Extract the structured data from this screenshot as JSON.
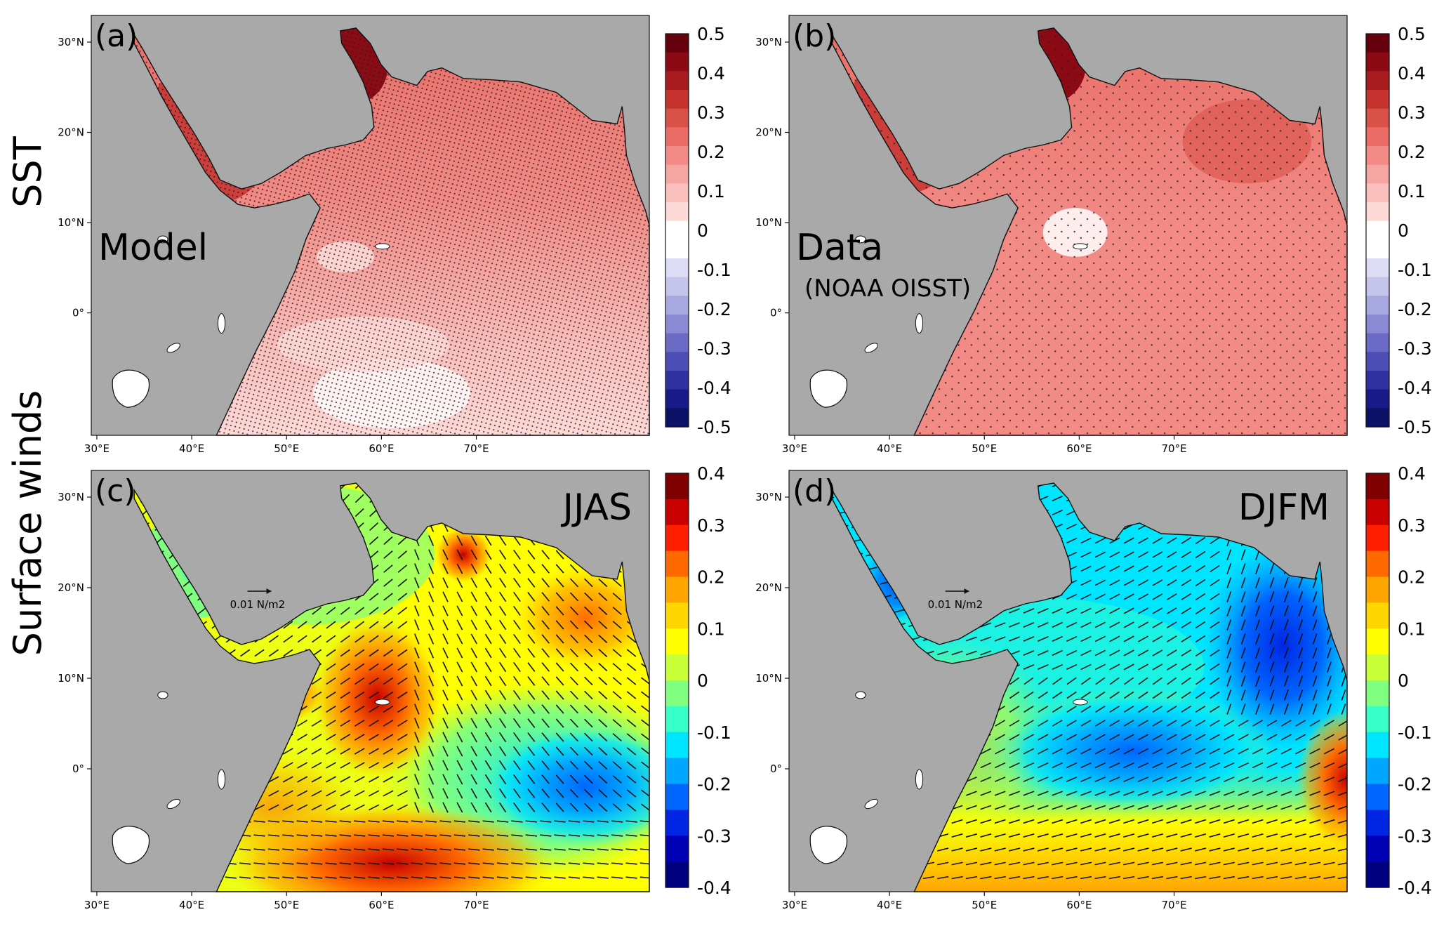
{
  "row_labels": [
    "SST",
    "Surface winds"
  ],
  "panels": [
    {
      "id": "a",
      "label": "(a)",
      "text": "Model",
      "subtext": "",
      "kind": "sst",
      "stipple": "dense"
    },
    {
      "id": "b",
      "label": "(b)",
      "text": "Data",
      "subtext": "(NOAA OISST)",
      "kind": "sst",
      "stipple": "sparse"
    },
    {
      "id": "c",
      "label": "(c)",
      "text": "JJAS",
      "subtext": "",
      "kind": "wind_jjas",
      "vector_label": "0.01 N/m2"
    },
    {
      "id": "d",
      "label": "(d)",
      "text": "DJFM",
      "subtext": "",
      "kind": "wind_djfm",
      "vector_label": "0.01 N/m2"
    }
  ],
  "lon_ticks": [
    "30°E",
    "40°E",
    "50°E",
    "60°E",
    "70°E"
  ],
  "lat_ticks": [
    "30°N",
    "20°N",
    "10°N",
    "0°"
  ],
  "colorbars": {
    "sst": {
      "labels": [
        "0.5",
        "0.4",
        "0.3",
        "0.2",
        "0.1",
        "0",
        "-0.1",
        "-0.2",
        "-0.3",
        "-0.4",
        "-0.5"
      ],
      "colors": [
        "#67000d",
        "#8b0a14",
        "#a81c1f",
        "#c6332f",
        "#d9524a",
        "#e96d66",
        "#f28a85",
        "#f6a6a2",
        "#fac0bd",
        "#fdd9d7",
        "#ffffff",
        "#ffffff",
        "#dcdcf4",
        "#c4c4ec",
        "#a8a8e0",
        "#8a8ad4",
        "#6b6bc6",
        "#4c4cb5",
        "#3030a0",
        "#191a88",
        "#0b1266"
      ]
    },
    "wind": {
      "labels": [
        "0.4",
        "0.3",
        "0.2",
        "0.1",
        "0",
        "-0.1",
        "-0.2",
        "-0.3",
        "-0.4"
      ],
      "colors": [
        "#7f0000",
        "#c80000",
        "#ff1e00",
        "#ff6a00",
        "#ffa500",
        "#ffd700",
        "#ffff00",
        "#c8ff38",
        "#80ff80",
        "#38ffc8",
        "#00e5ff",
        "#00a6ff",
        "#0066ff",
        "#0026e5",
        "#0000b4",
        "#00007f"
      ]
    }
  },
  "colors": {
    "land": "#a9a9a9",
    "ocean_sst": "#f4a6a4"
  }
}
